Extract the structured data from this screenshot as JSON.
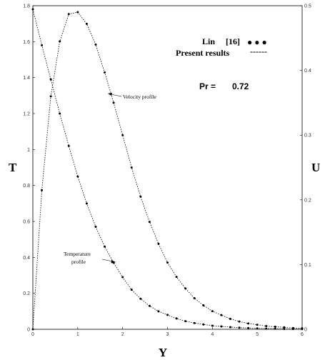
{
  "chart_data": {
    "type": "line",
    "xlabel": "Y",
    "ylabel_left": "T",
    "ylabel_right": "U",
    "xlim": [
      0,
      6
    ],
    "ylim_left": [
      0,
      1.8
    ],
    "ylim_right": [
      0,
      0.5
    ],
    "x_ticks": [
      "0",
      "1",
      "2",
      "3",
      "4",
      "5",
      "6"
    ],
    "y_left_ticks": [
      "0",
      "0.2",
      "0.4",
      "0.6",
      "0.8",
      "1",
      "1.2",
      "1.4",
      "1.6",
      "1.8"
    ],
    "y_right_ticks": [
      "0",
      "0.1",
      "0.2",
      "0.3",
      "0.4",
      "0.5"
    ],
    "legend": {
      "reference_label": "Lin",
      "reference_cite": "[16]",
      "reference_marker": "● ● ●",
      "present_label": "Present results",
      "present_marker": "------"
    },
    "parameter_label": "Pr =",
    "parameter_value": "0.72",
    "annotations": {
      "velocity": "Velocity profile",
      "temperature_line1": "Temperature",
      "temperature_line2": "profile"
    },
    "series": [
      {
        "name": "Temperature profile",
        "axis": "left",
        "x": [
          0,
          0.2,
          0.4,
          0.6,
          0.8,
          1.0,
          1.2,
          1.4,
          1.6,
          1.8,
          2.0,
          2.2,
          2.4,
          2.6,
          2.8,
          3.0,
          3.2,
          3.4,
          3.6,
          3.8,
          4.0,
          4.2,
          4.4,
          4.6,
          4.8,
          5.0,
          5.2,
          5.4,
          5.6,
          5.8,
          6.0
        ],
        "values": [
          1.78,
          1.58,
          1.39,
          1.2,
          1.02,
          0.85,
          0.7,
          0.57,
          0.46,
          0.37,
          0.29,
          0.22,
          0.17,
          0.13,
          0.1,
          0.08,
          0.06,
          0.045,
          0.035,
          0.027,
          0.02,
          0.016,
          0.012,
          0.009,
          0.007,
          0.005,
          0.004,
          0.003,
          0.002,
          0.0015,
          0.001
        ]
      },
      {
        "name": "Velocity profile",
        "axis": "right",
        "x": [
          0,
          0.2,
          0.4,
          0.6,
          0.8,
          1.0,
          1.2,
          1.4,
          1.6,
          1.8,
          2.0,
          2.2,
          2.4,
          2.6,
          2.8,
          3.0,
          3.2,
          3.4,
          3.6,
          3.8,
          4.0,
          4.2,
          4.4,
          4.6,
          4.8,
          5.0,
          5.2,
          5.4,
          5.6,
          5.8,
          6.0
        ],
        "values": [
          0,
          0.215,
          0.36,
          0.445,
          0.487,
          0.49,
          0.472,
          0.44,
          0.397,
          0.35,
          0.3,
          0.25,
          0.205,
          0.166,
          0.132,
          0.103,
          0.081,
          0.063,
          0.048,
          0.037,
          0.028,
          0.022,
          0.016,
          0.012,
          0.009,
          0.007,
          0.005,
          0.004,
          0.003,
          0.002,
          0.0015
        ]
      }
    ]
  }
}
